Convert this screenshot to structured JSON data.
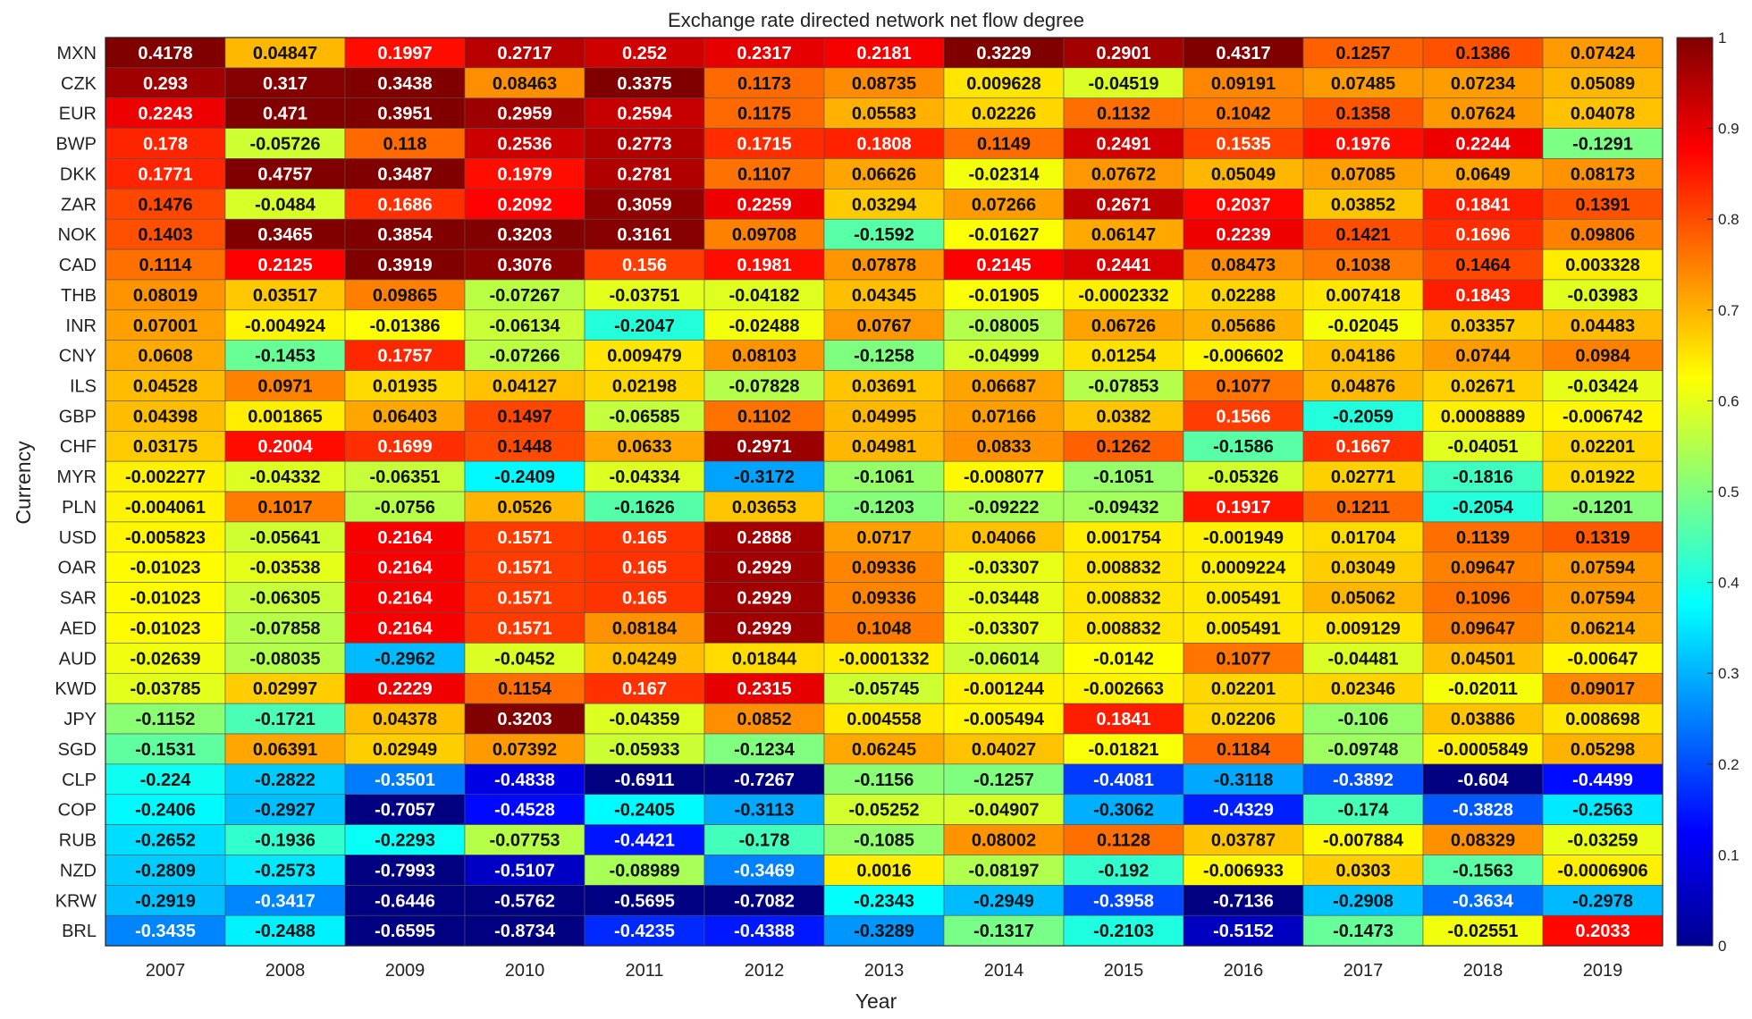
{
  "chart_data": {
    "type": "heatmap",
    "title": "Exchange rate directed network net flow degree",
    "xlabel": "Year",
    "ylabel": "Currency",
    "x": [
      "2007",
      "2008",
      "2009",
      "2010",
      "2011",
      "2012",
      "2013",
      "2014",
      "2015",
      "2016",
      "2017",
      "2018",
      "2019"
    ],
    "y": [
      "MXN",
      "CZK",
      "EUR",
      "BWP",
      "DKK",
      "ZAR",
      "NOK",
      "CAD",
      "THB",
      "INR",
      "CNY",
      "ILS",
      "GBP",
      "CHF",
      "MYR",
      "PLN",
      "USD",
      "OAR",
      "SAR",
      "AED",
      "AUD",
      "KWD",
      "JPY",
      "SGD",
      "CLP",
      "COP",
      "RUB",
      "NZD",
      "KRW",
      "BRL"
    ],
    "labels": [
      [
        "0.4178",
        "0.04847",
        "0.1997",
        "0.2717",
        "0.252",
        "0.2317",
        "0.2181",
        "0.3229",
        "0.2901",
        "0.4317",
        "0.1257",
        "0.1386",
        "0.07424"
      ],
      [
        "0.293",
        "0.317",
        "0.3438",
        "0.08463",
        "0.3375",
        "0.1173",
        "0.08735",
        "0.009628",
        "-0.04519",
        "0.09191",
        "0.07485",
        "0.07234",
        "0.05089"
      ],
      [
        "0.2243",
        "0.471",
        "0.3951",
        "0.2959",
        "0.2594",
        "0.1175",
        "0.05583",
        "0.02226",
        "0.1132",
        "0.1042",
        "0.1358",
        "0.07624",
        "0.04078"
      ],
      [
        "0.178",
        "-0.05726",
        "0.118",
        "0.2536",
        "0.2773",
        "0.1715",
        "0.1808",
        "0.1149",
        "0.2491",
        "0.1535",
        "0.1976",
        "0.2244",
        "-0.1291"
      ],
      [
        "0.1771",
        "0.4757",
        "0.3487",
        "0.1979",
        "0.2781",
        "0.1107",
        "0.06626",
        "-0.02314",
        "0.07672",
        "0.05049",
        "0.07085",
        "0.0649",
        "0.08173"
      ],
      [
        "0.1476",
        "-0.0484",
        "0.1686",
        "0.2092",
        "0.3059",
        "0.2259",
        "0.03294",
        "0.07266",
        "0.2671",
        "0.2037",
        "0.03852",
        "0.1841",
        "0.1391"
      ],
      [
        "0.1403",
        "0.3465",
        "0.3854",
        "0.3203",
        "0.3161",
        "0.09708",
        "-0.1592",
        "-0.01627",
        "0.06147",
        "0.2239",
        "0.1421",
        "0.1696",
        "0.09806"
      ],
      [
        "0.1114",
        "0.2125",
        "0.3919",
        "0.3076",
        "0.156",
        "0.1981",
        "0.07878",
        "0.2145",
        "0.2441",
        "0.08473",
        "0.1038",
        "0.1464",
        "0.003328"
      ],
      [
        "0.08019",
        "0.03517",
        "0.09865",
        "-0.07267",
        "-0.03751",
        "-0.04182",
        "0.04345",
        "-0.01905",
        "-0.0002332",
        "0.02288",
        "0.007418",
        "0.1843",
        "-0.03983"
      ],
      [
        "0.07001",
        "-0.004924",
        "-0.01386",
        "-0.06134",
        "-0.2047",
        "-0.02488",
        "0.0767",
        "-0.08005",
        "0.06726",
        "0.05686",
        "-0.02045",
        "0.03357",
        "0.04483"
      ],
      [
        "0.0608",
        "-0.1453",
        "0.1757",
        "-0.07266",
        "0.009479",
        "0.08103",
        "-0.1258",
        "-0.04999",
        "0.01254",
        "-0.006602",
        "0.04186",
        "0.0744",
        "0.0984"
      ],
      [
        "0.04528",
        "0.0971",
        "0.01935",
        "0.04127",
        "0.02198",
        "-0.07828",
        "0.03691",
        "0.06687",
        "-0.07853",
        "0.1077",
        "0.04876",
        "0.02671",
        "-0.03424"
      ],
      [
        "0.04398",
        "0.001865",
        "0.06403",
        "0.1497",
        "-0.06585",
        "0.1102",
        "0.04995",
        "0.07166",
        "0.0382",
        "0.1566",
        "-0.2059",
        "0.0008889",
        "-0.006742"
      ],
      [
        "0.03175",
        "0.2004",
        "0.1699",
        "0.1448",
        "0.0633",
        "0.2971",
        "0.04981",
        "0.0833",
        "0.1262",
        "-0.1586",
        "0.1667",
        "-0.04051",
        "0.02201"
      ],
      [
        "-0.002277",
        "-0.04332",
        "-0.06351",
        "-0.2409",
        "-0.04334",
        "-0.3172",
        "-0.1061",
        "-0.008077",
        "-0.1051",
        "-0.05326",
        "0.02771",
        "-0.1816",
        "0.01922"
      ],
      [
        "-0.004061",
        "0.1017",
        "-0.0756",
        "0.0526",
        "-0.1626",
        "0.03653",
        "-0.1203",
        "-0.09222",
        "-0.09432",
        "0.1917",
        "0.1211",
        "-0.2054",
        "-0.1201"
      ],
      [
        "-0.005823",
        "-0.05641",
        "0.2164",
        "0.1571",
        "0.165",
        "0.2888",
        "0.0717",
        "0.04066",
        "0.001754",
        "-0.001949",
        "0.01704",
        "0.1139",
        "0.1319"
      ],
      [
        "-0.01023",
        "-0.03538",
        "0.2164",
        "0.1571",
        "0.165",
        "0.2929",
        "0.09336",
        "-0.03307",
        "0.008832",
        "0.0009224",
        "0.03049",
        "0.09647",
        "0.07594"
      ],
      [
        "-0.01023",
        "-0.06305",
        "0.2164",
        "0.1571",
        "0.165",
        "0.2929",
        "0.09336",
        "-0.03448",
        "0.008832",
        "0.005491",
        "0.05062",
        "0.1096",
        "0.07594"
      ],
      [
        "-0.01023",
        "-0.07858",
        "0.2164",
        "0.1571",
        "0.08184",
        "0.2929",
        "0.1048",
        "-0.03307",
        "0.008832",
        "0.005491",
        "0.009129",
        "0.09647",
        "0.06214"
      ],
      [
        "-0.02639",
        "-0.08035",
        "-0.2962",
        "-0.0452",
        "0.04249",
        "0.01844",
        "-0.0001332",
        "-0.06014",
        "-0.0142",
        "0.1077",
        "-0.04481",
        "0.04501",
        "-0.00647"
      ],
      [
        "-0.03785",
        "0.02997",
        "0.2229",
        "0.1154",
        "0.167",
        "0.2315",
        "-0.05745",
        "-0.001244",
        "-0.002663",
        "0.02201",
        "0.02346",
        "-0.02011",
        "0.09017"
      ],
      [
        "-0.1152",
        "-0.1721",
        "0.04378",
        "0.3203",
        "-0.04359",
        "0.0852",
        "0.004558",
        "-0.005494",
        "0.1841",
        "0.02206",
        "-0.106",
        "0.03886",
        "0.008698"
      ],
      [
        "-0.1531",
        "0.06391",
        "0.02949",
        "0.07392",
        "-0.05933",
        "-0.1234",
        "0.06245",
        "0.04027",
        "-0.01821",
        "0.1184",
        "-0.09748",
        "-0.0005849",
        "0.05298"
      ],
      [
        "-0.224",
        "-0.2822",
        "-0.3501",
        "-0.4838",
        "-0.6911",
        "-0.7267",
        "-0.1156",
        "-0.1257",
        "-0.4081",
        "-0.3118",
        "-0.3892",
        "-0.604",
        "-0.4499"
      ],
      [
        "-0.2406",
        "-0.2927",
        "-0.7057",
        "-0.4528",
        "-0.2405",
        "-0.3113",
        "-0.05252",
        "-0.04907",
        "-0.3062",
        "-0.4329",
        "-0.174",
        "-0.3828",
        "-0.2563"
      ],
      [
        "-0.2652",
        "-0.1936",
        "-0.2293",
        "-0.07753",
        "-0.4421",
        "-0.178",
        "-0.1085",
        "0.08002",
        "0.1128",
        "0.03787",
        "-0.007884",
        "0.08329",
        "-0.03259"
      ],
      [
        "-0.2809",
        "-0.2573",
        "-0.7993",
        "-0.5107",
        "-0.08989",
        "-0.3469",
        "0.0016",
        "-0.08197",
        "-0.192",
        "-0.006933",
        "0.0303",
        "-0.1563",
        "-0.0006906"
      ],
      [
        "-0.2919",
        "-0.3417",
        "-0.6446",
        "-0.5762",
        "-0.5695",
        "-0.7082",
        "-0.2343",
        "-0.2949",
        "-0.3958",
        "-0.7136",
        "-0.2908",
        "-0.3634",
        "-0.2978"
      ],
      [
        "-0.3435",
        "-0.2488",
        "-0.6595",
        "-0.8734",
        "-0.4235",
        "-0.4388",
        "-0.3289",
        "-0.1317",
        "-0.2103",
        "-0.5152",
        "-0.1473",
        "-0.02551",
        "0.2033"
      ]
    ],
    "colorbar": {
      "colormap": "jet",
      "range": [
        0,
        1
      ],
      "ticks": [
        "0",
        "0.1",
        "0.2",
        "0.3",
        "0.4",
        "0.5",
        "0.6",
        "0.7",
        "0.8",
        "0.9",
        "1"
      ]
    },
    "color_scale_note": ""
  }
}
